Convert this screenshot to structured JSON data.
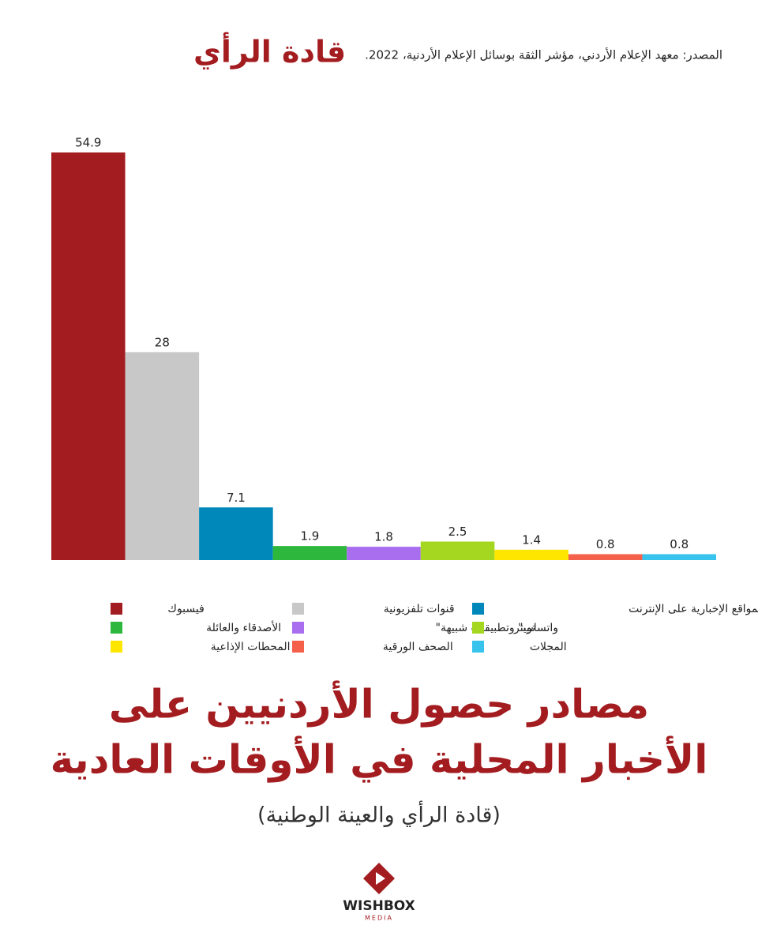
{
  "header": {
    "brand": "قادة الرأي",
    "source": "المصدر: معهد الإعلام الأردني، مؤشر الثقة بوسائل الإعلام الأردنية، 2022."
  },
  "chart_data": {
    "type": "bar",
    "categories": [
      "فيسبوك",
      "قنوات تلفزيونية",
      "المواقع الإخبارية على الإنترنت",
      "الأصدقاء والعائلة",
      "واتساب\" وتطبيقات شبيهة\"",
      "تويتر",
      "المحطات الإذاعية",
      "الصحف الورقية",
      "المجلات"
    ],
    "values": [
      54.9,
      28,
      7.1,
      1.9,
      1.8,
      2.5,
      1.4,
      0.8,
      0.8
    ],
    "colors": [
      "#a31c1f",
      "#c8c8c8",
      "#0088bb",
      "#2db83d",
      "#a96ef0",
      "#a5d620",
      "#ffe600",
      "#f4604a",
      "#37c3ec"
    ]
  },
  "title": {
    "line1": "مصادر حصول الأردنيين على",
    "line2": "الأخبار المحلية في الأوقات العادية",
    "subtitle": "(قادة الرأي والعينة الوطنية)"
  },
  "logo": {
    "name": "WISHBOX",
    "tagline": "MEDIA"
  }
}
